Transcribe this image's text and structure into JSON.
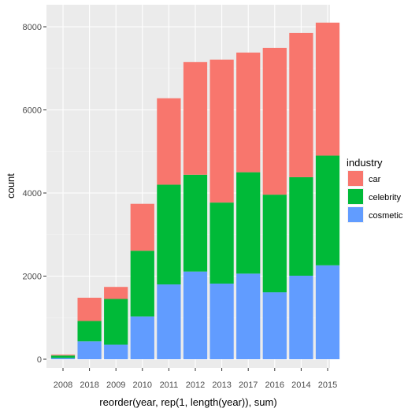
{
  "chart_data": {
    "type": "bar",
    "stacked": true,
    "title": "",
    "xlabel": "reorder(year, rep(1, length(year)), sum)",
    "ylabel": "count",
    "categories": [
      "2008",
      "2018",
      "2009",
      "2010",
      "2011",
      "2012",
      "2013",
      "2017",
      "2016",
      "2014",
      "2015"
    ],
    "ylim": [
      0,
      8500
    ],
    "yticks": [
      0,
      2000,
      4000,
      6000,
      8000
    ],
    "ytick_labels": [
      "0",
      "2000",
      "4000",
      "6000",
      "8000"
    ],
    "grid": true,
    "legend_title": "industry",
    "legend_position": "right",
    "series": [
      {
        "name": "cosmetic",
        "color": "#619CFF",
        "values": [
          30,
          430,
          350,
          1030,
          1800,
          2110,
          1820,
          2060,
          1610,
          2010,
          2260
        ]
      },
      {
        "name": "celebrity",
        "color": "#00BA38",
        "values": [
          60,
          490,
          1100,
          1580,
          2400,
          2330,
          1950,
          2440,
          2350,
          2370,
          2640
        ]
      },
      {
        "name": "car",
        "color": "#F8766D",
        "values": [
          20,
          560,
          290,
          1130,
          2080,
          2710,
          3440,
          2880,
          3530,
          3470,
          3200
        ]
      }
    ],
    "legend_order": [
      "car",
      "celebrity",
      "cosmetic"
    ]
  }
}
